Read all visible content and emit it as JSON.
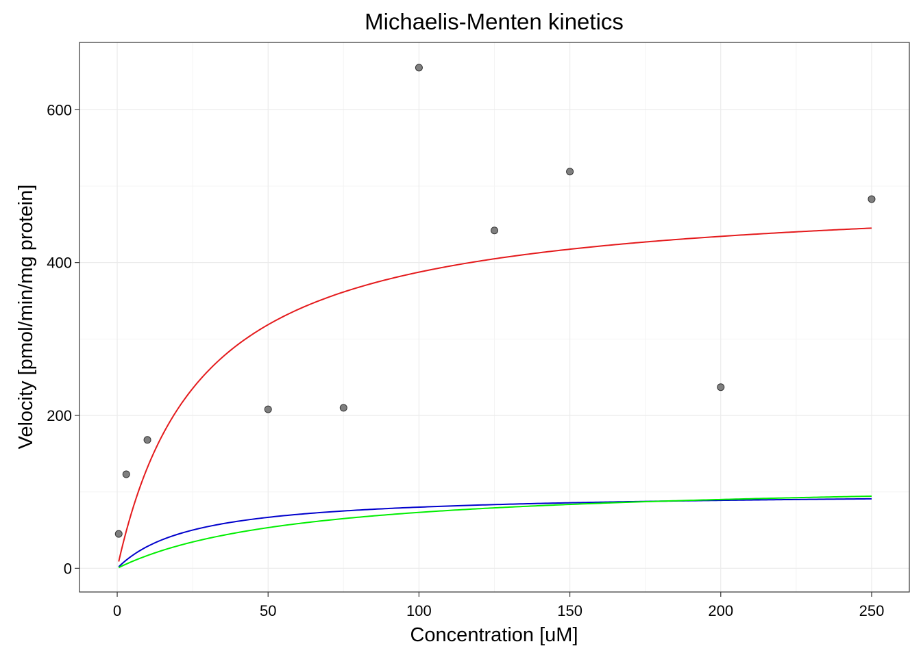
{
  "chart_data": {
    "type": "scatter",
    "title": "Michaelis-Menten kinetics",
    "xlabel": "Concentration [uM]",
    "ylabel": "Velocity [pmol/min/mg protein]",
    "xlim": [
      -12.5,
      262.5
    ],
    "ylim": [
      -31,
      688
    ],
    "x_ticks": [
      0,
      50,
      100,
      150,
      200,
      250
    ],
    "y_ticks": [
      0,
      200,
      400,
      600
    ],
    "grid": true,
    "points": [
      {
        "x": 0.5,
        "y": 45
      },
      {
        "x": 3,
        "y": 123
      },
      {
        "x": 10,
        "y": 168
      },
      {
        "x": 50,
        "y": 208
      },
      {
        "x": 75,
        "y": 210
      },
      {
        "x": 100,
        "y": 655
      },
      {
        "x": 125,
        "y": 442
      },
      {
        "x": 150,
        "y": 519
      },
      {
        "x": 200,
        "y": 237
      },
      {
        "x": 250,
        "y": 483
      }
    ],
    "curves": [
      {
        "vmax": 494,
        "km": 27.5,
        "color": "#e41a1c",
        "x_range": [
          0.5,
          250
        ]
      },
      {
        "vmax": 100,
        "km": 25,
        "color": "#0000cc",
        "x_range": [
          0.5,
          250
        ]
      },
      {
        "vmax": 117,
        "km": 60,
        "color": "#00ee00",
        "x_range": [
          0.5,
          250
        ]
      }
    ]
  }
}
